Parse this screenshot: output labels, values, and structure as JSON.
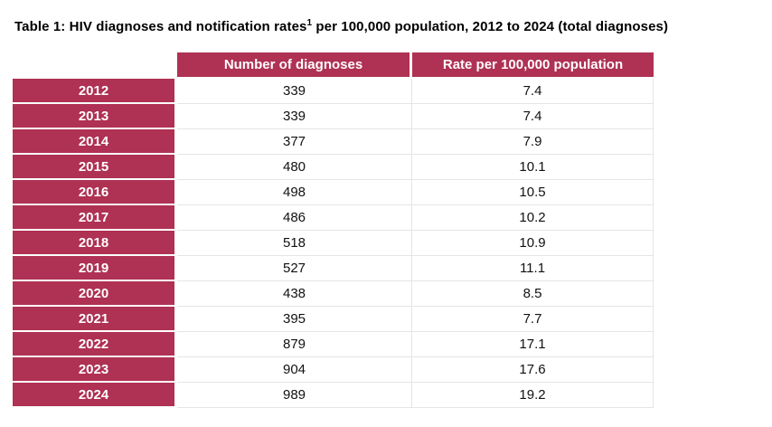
{
  "title": {
    "prefix": "Table 1: HIV diagnoses and notification rates",
    "superscript": "1",
    "suffix": " per 100,000 population, 2012 to 2024 (total diagnoses)"
  },
  "colors": {
    "accent": "#AF3153",
    "cell_border": "#E5E5E5",
    "header_text": "#FFFFFF",
    "body_text": "#111111"
  },
  "chart_data": {
    "type": "table",
    "title": "Table 1: HIV diagnoses and notification rates1 per 100,000 population, 2012 to 2024 (total diagnoses)",
    "categories": [
      "2012",
      "2013",
      "2014",
      "2015",
      "2016",
      "2017",
      "2018",
      "2019",
      "2020",
      "2021",
      "2022",
      "2023",
      "2024"
    ],
    "series": [
      {
        "name": "Number of diagnoses",
        "values": [
          339,
          339,
          377,
          480,
          498,
          486,
          518,
          527,
          438,
          395,
          879,
          904,
          989
        ]
      },
      {
        "name": "Rate per 100,000 population",
        "values": [
          7.4,
          7.4,
          7.9,
          10.1,
          10.5,
          10.2,
          10.9,
          11.1,
          8.5,
          7.7,
          17.1,
          17.6,
          19.2
        ]
      }
    ],
    "layout": {
      "header_fill": "#AF3153",
      "grid": true,
      "legend_position": "none"
    }
  }
}
